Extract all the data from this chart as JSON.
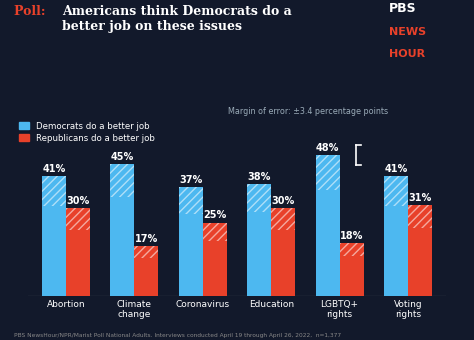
{
  "categories": [
    "Abortion",
    "Climate\nchange",
    "Coronavirus",
    "Education",
    "LGBTQ+\nrights",
    "Voting\nrights"
  ],
  "dem_values": [
    41,
    45,
    37,
    38,
    48,
    41
  ],
  "rep_values": [
    30,
    17,
    25,
    30,
    18,
    31
  ],
  "dem_color": "#4db8f0",
  "rep_color": "#e8412a",
  "background_color": "#12192b",
  "title_prefix": "Poll: ",
  "title_main": "Americans think Democrats do a\nbetter job on these issues",
  "title_color_prefix": "#e8412a",
  "title_color_main": "#ffffff",
  "legend_dem": "Democrats do a better job",
  "legend_rep": "Republicans do a better job",
  "margin_note": "Margin of error: ±3.4 percentage points",
  "footnote": "PBS NewsHour/NPR/Marist Poll National Adults. Interviews conducted April 19 through April 26, 2022,  n=1,377",
  "bar_width": 0.35,
  "ylim": [
    0,
    58
  ],
  "pbs_line1": "PBS",
  "pbs_line2": "NEWS",
  "pbs_line3": "HOUR"
}
